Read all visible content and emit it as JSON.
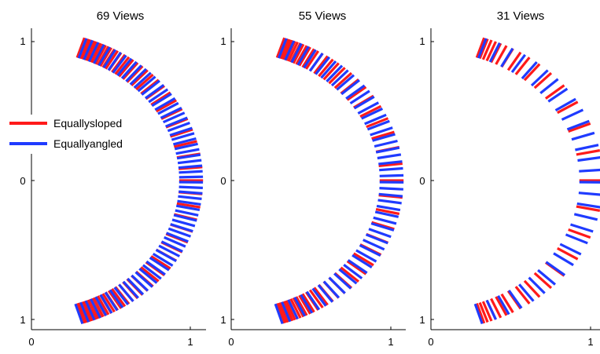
{
  "chart_data": [
    {
      "type": "scatter",
      "title": "69 Views",
      "views": 69,
      "xlim": [
        0,
        1.1
      ],
      "ylim": [
        -1,
        1
      ],
      "x_ticks": [
        "0",
        "1"
      ],
      "y_ticks": [
        "1",
        "0",
        "1"
      ],
      "grid": false,
      "legend": {
        "placement": "left",
        "entries": [
          {
            "label": "Equallysloped",
            "color": "#ff1a1a"
          },
          {
            "label": "Equallyangled",
            "color": "#1f3bff"
          }
        ]
      }
    },
    {
      "type": "scatter",
      "title": "55 Views",
      "views": 55,
      "xlim": [
        0,
        1.1
      ],
      "ylim": [
        -1,
        1
      ],
      "x_ticks": [
        "0",
        "1"
      ],
      "y_ticks": [
        "1",
        "0",
        "1"
      ],
      "grid": false
    },
    {
      "type": "scatter",
      "title": "31 Views",
      "views": 31,
      "xlim": [
        0,
        1.1
      ],
      "ylim": [
        -1,
        1
      ],
      "x_ticks": [
        "0",
        "1"
      ],
      "y_ticks": [
        "1",
        "0",
        "1"
      ],
      "grid": false
    }
  ],
  "colors": {
    "equally_sloped": "#ff1a1a",
    "equally_angled": "#1f3bff"
  }
}
